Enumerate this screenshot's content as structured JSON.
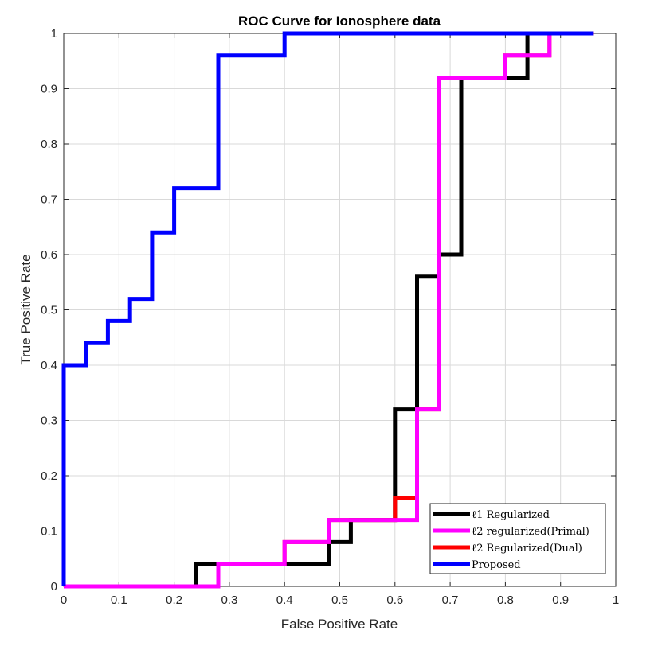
{
  "chart_data": {
    "type": "line",
    "step": true,
    "title": "ROC Curve for Ionosphere data",
    "xlabel": "False Positive Rate",
    "ylabel": "True Positive Rate",
    "xlim": [
      0,
      1
    ],
    "ylim": [
      0,
      1
    ],
    "grid": true,
    "legend_position": "bottom-right",
    "xticks": [
      "0",
      "0.1",
      "0.2",
      "0.3",
      "0.4",
      "0.5",
      "0.6",
      "0.7",
      "0.8",
      "0.9",
      "1"
    ],
    "yticks": [
      "0",
      "0.1",
      "0.2",
      "0.3",
      "0.4",
      "0.5",
      "0.6",
      "0.7",
      "0.8",
      "0.9",
      "1"
    ],
    "series": [
      {
        "name": "ℓ1 Regularized",
        "color": "#000000",
        "x": [
          0,
          0.24,
          0.24,
          0.4,
          0.4,
          0.48,
          0.48,
          0.52,
          0.52,
          0.6,
          0.6,
          0.64,
          0.64,
          0.68,
          0.68,
          0.72,
          0.72,
          0.84,
          0.84,
          0.96
        ],
        "y": [
          0,
          0,
          0.04,
          0.04,
          0.04,
          0.04,
          0.08,
          0.08,
          0.12,
          0.12,
          0.32,
          0.32,
          0.56,
          0.56,
          0.6,
          0.6,
          0.92,
          0.92,
          1.0,
          1.0
        ]
      },
      {
        "name": "ℓ2 regularized(Primal)",
        "color": "#ff00ff",
        "x": [
          0,
          0.28,
          0.28,
          0.4,
          0.4,
          0.48,
          0.48,
          0.6,
          0.6,
          0.64,
          0.64,
          0.68,
          0.68,
          0.8,
          0.8,
          0.88,
          0.88,
          0.96
        ],
        "y": [
          0,
          0,
          0.04,
          0.04,
          0.08,
          0.08,
          0.12,
          0.12,
          0.12,
          0.12,
          0.32,
          0.32,
          0.92,
          0.92,
          0.96,
          0.96,
          1.0,
          1.0
        ]
      },
      {
        "name": "ℓ2 Regularized(Dual)",
        "color": "#ff0000",
        "x": [
          0,
          0.28,
          0.28,
          0.4,
          0.4,
          0.48,
          0.48,
          0.6,
          0.6,
          0.64,
          0.64,
          0.68,
          0.68,
          0.8,
          0.8,
          0.88,
          0.88,
          0.96
        ],
        "y": [
          0,
          0,
          0.04,
          0.04,
          0.08,
          0.08,
          0.12,
          0.12,
          0.16,
          0.16,
          0.32,
          0.32,
          0.92,
          0.92,
          0.96,
          0.96,
          1.0,
          1.0
        ]
      },
      {
        "name": "Proposed",
        "color": "#0000ff",
        "x": [
          0,
          0,
          0.04,
          0.04,
          0.08,
          0.08,
          0.12,
          0.12,
          0.16,
          0.16,
          0.2,
          0.2,
          0.28,
          0.28,
          0.4,
          0.4,
          0.96
        ],
        "y": [
          0,
          0.4,
          0.4,
          0.44,
          0.44,
          0.48,
          0.48,
          0.52,
          0.52,
          0.64,
          0.64,
          0.72,
          0.72,
          0.96,
          0.96,
          1.0,
          1.0
        ]
      }
    ]
  }
}
